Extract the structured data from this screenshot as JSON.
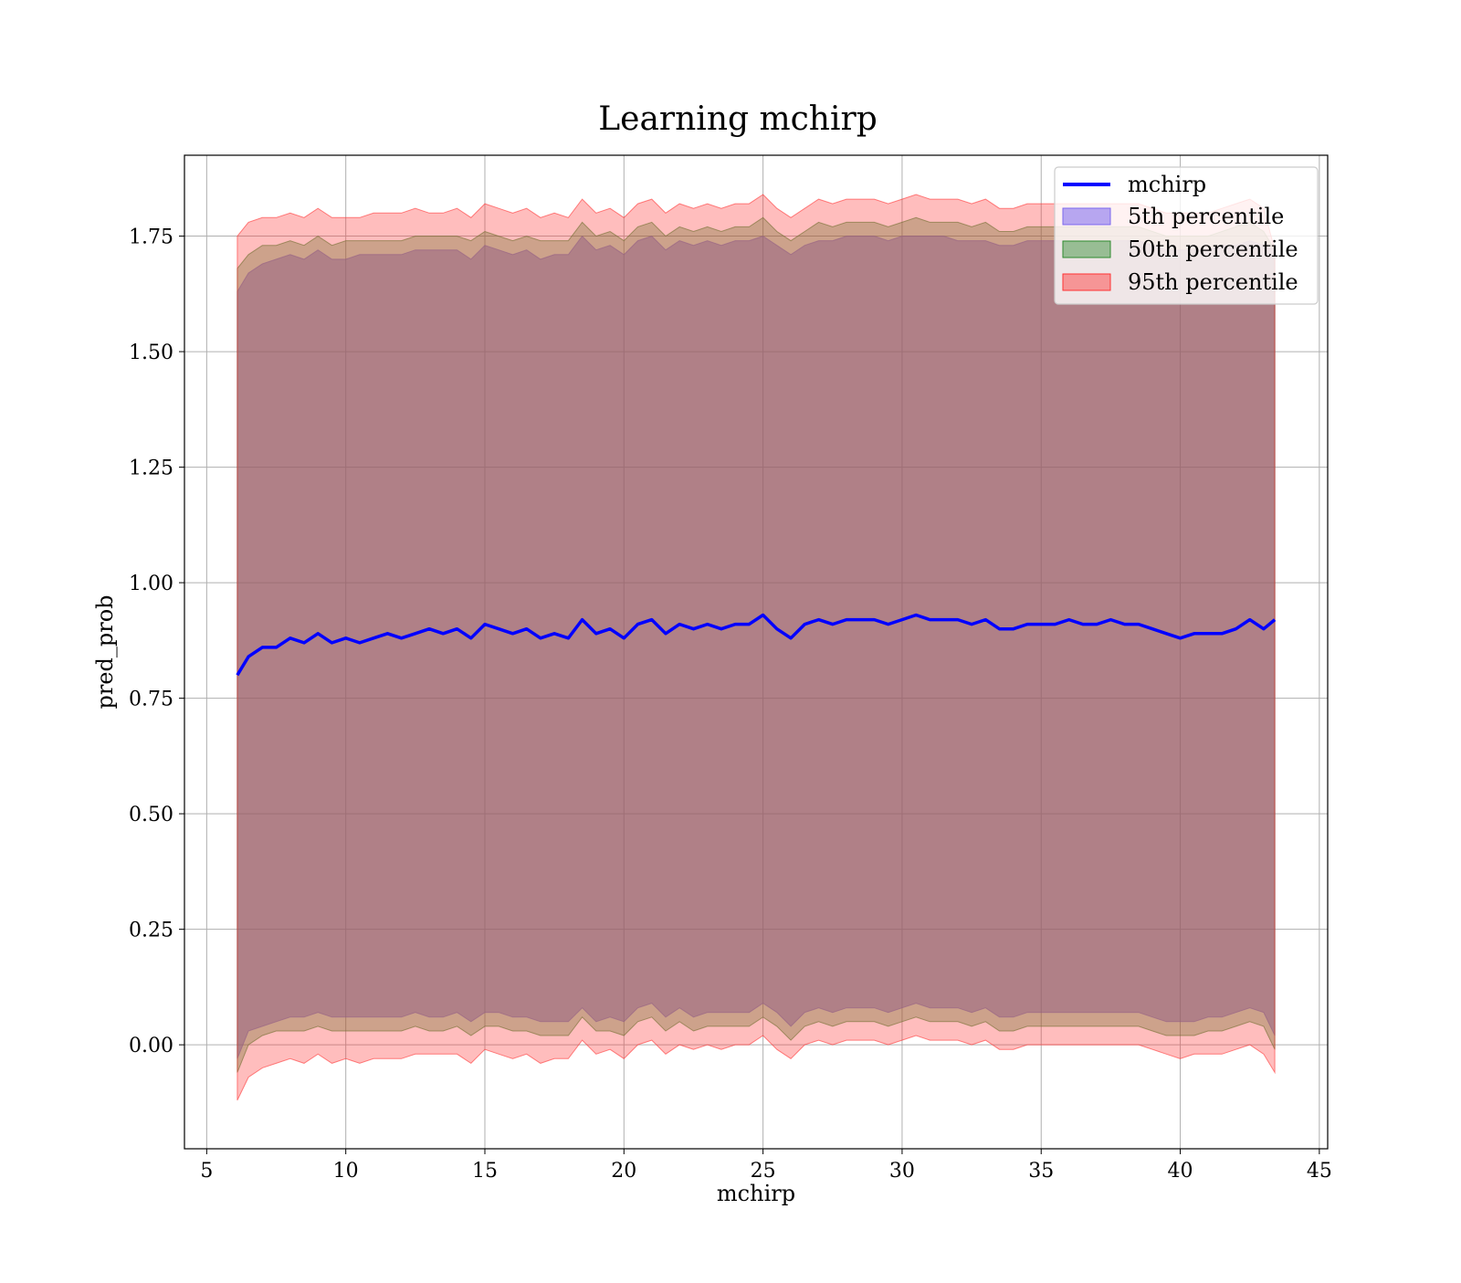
{
  "chart_data": {
    "type": "area",
    "title": "Learning mchirp",
    "xlabel": "mchirp",
    "ylabel": "pred_prob",
    "xlim": [
      4.2,
      45.3
    ],
    "ylim": [
      -0.225,
      1.925
    ],
    "xticks": [
      "5",
      "10",
      "15",
      "20",
      "25",
      "30",
      "35",
      "40",
      "45"
    ],
    "yticks": [
      "0.00",
      "0.25",
      "0.50",
      "0.75",
      "1.00",
      "1.25",
      "1.50",
      "1.75"
    ],
    "grid": true,
    "legend_position": "top-right",
    "legend": [
      "mchirp",
      "5th percentile",
      "50th percentile",
      "95th percentile"
    ],
    "x": [
      6.1,
      6.5,
      7,
      7.5,
      8,
      8.5,
      9,
      9.5,
      10,
      10.5,
      11,
      11.5,
      12,
      12.5,
      13,
      13.5,
      14,
      14.5,
      15,
      15.5,
      16,
      16.5,
      17,
      17.5,
      18,
      18.5,
      19,
      19.5,
      20,
      20.5,
      21,
      21.5,
      22,
      22.5,
      23,
      23.5,
      24,
      24.5,
      25,
      25.5,
      26,
      26.5,
      27,
      27.5,
      28,
      28.5,
      29,
      29.5,
      30,
      30.5,
      31,
      31.5,
      32,
      32.5,
      33,
      33.5,
      34,
      34.5,
      35,
      35.5,
      36,
      36.5,
      37,
      37.5,
      38,
      38.5,
      39,
      39.5,
      40,
      40.5,
      41,
      41.5,
      42,
      42.5,
      43,
      43.4
    ],
    "series": [
      {
        "name": "mchirp",
        "color": "#0000ff",
        "values": [
          0.8,
          0.84,
          0.86,
          0.86,
          0.88,
          0.87,
          0.89,
          0.87,
          0.88,
          0.87,
          0.88,
          0.89,
          0.88,
          0.89,
          0.9,
          0.89,
          0.9,
          0.88,
          0.91,
          0.9,
          0.89,
          0.9,
          0.88,
          0.89,
          0.88,
          0.92,
          0.89,
          0.9,
          0.88,
          0.91,
          0.92,
          0.89,
          0.91,
          0.9,
          0.91,
          0.9,
          0.91,
          0.91,
          0.93,
          0.9,
          0.88,
          0.91,
          0.92,
          0.91,
          0.92,
          0.92,
          0.92,
          0.91,
          0.92,
          0.93,
          0.92,
          0.92,
          0.92,
          0.91,
          0.92,
          0.9,
          0.9,
          0.91,
          0.91,
          0.91,
          0.92,
          0.91,
          0.91,
          0.92,
          0.91,
          0.91,
          0.9,
          0.89,
          0.88,
          0.89,
          0.89,
          0.89,
          0.9,
          0.92,
          0.9,
          0.92
        ]
      },
      {
        "name": "5th percentile",
        "color": "#7b68ee",
        "lower": [
          -0.03,
          0.03,
          0.04,
          0.05,
          0.06,
          0.06,
          0.07,
          0.06,
          0.06,
          0.06,
          0.06,
          0.06,
          0.06,
          0.07,
          0.06,
          0.06,
          0.07,
          0.05,
          0.07,
          0.07,
          0.06,
          0.06,
          0.05,
          0.05,
          0.05,
          0.08,
          0.05,
          0.06,
          0.05,
          0.08,
          0.09,
          0.06,
          0.08,
          0.06,
          0.07,
          0.07,
          0.07,
          0.07,
          0.09,
          0.07,
          0.04,
          0.07,
          0.08,
          0.07,
          0.08,
          0.08,
          0.08,
          0.07,
          0.08,
          0.09,
          0.08,
          0.08,
          0.08,
          0.07,
          0.08,
          0.06,
          0.06,
          0.07,
          0.07,
          0.07,
          0.07,
          0.07,
          0.07,
          0.07,
          0.07,
          0.07,
          0.06,
          0.05,
          0.05,
          0.05,
          0.06,
          0.06,
          0.07,
          0.08,
          0.07,
          0.02
        ],
        "upper": [
          1.63,
          1.67,
          1.69,
          1.7,
          1.71,
          1.7,
          1.72,
          1.7,
          1.7,
          1.71,
          1.71,
          1.71,
          1.71,
          1.72,
          1.72,
          1.72,
          1.72,
          1.7,
          1.73,
          1.72,
          1.71,
          1.72,
          1.7,
          1.71,
          1.71,
          1.75,
          1.72,
          1.73,
          1.71,
          1.74,
          1.75,
          1.72,
          1.74,
          1.73,
          1.74,
          1.73,
          1.74,
          1.74,
          1.75,
          1.73,
          1.71,
          1.73,
          1.74,
          1.74,
          1.75,
          1.75,
          1.75,
          1.74,
          1.75,
          1.75,
          1.75,
          1.75,
          1.74,
          1.74,
          1.74,
          1.73,
          1.73,
          1.74,
          1.74,
          1.74,
          1.74,
          1.74,
          1.74,
          1.74,
          1.74,
          1.74,
          1.73,
          1.72,
          1.72,
          1.72,
          1.72,
          1.73,
          1.73,
          1.74,
          1.73,
          1.72
        ]
      },
      {
        "name": "50th percentile",
        "color": "#2e8b2e",
        "lower": [
          -0.06,
          0.0,
          0.02,
          0.03,
          0.03,
          0.03,
          0.04,
          0.03,
          0.03,
          0.03,
          0.03,
          0.03,
          0.03,
          0.04,
          0.03,
          0.03,
          0.04,
          0.02,
          0.04,
          0.04,
          0.03,
          0.03,
          0.02,
          0.02,
          0.02,
          0.06,
          0.03,
          0.03,
          0.02,
          0.05,
          0.06,
          0.03,
          0.05,
          0.03,
          0.04,
          0.04,
          0.04,
          0.04,
          0.06,
          0.04,
          0.01,
          0.04,
          0.05,
          0.04,
          0.05,
          0.05,
          0.05,
          0.04,
          0.05,
          0.06,
          0.05,
          0.05,
          0.05,
          0.04,
          0.05,
          0.03,
          0.03,
          0.04,
          0.04,
          0.04,
          0.04,
          0.04,
          0.04,
          0.04,
          0.04,
          0.04,
          0.03,
          0.02,
          0.02,
          0.02,
          0.03,
          0.03,
          0.04,
          0.05,
          0.04,
          -0.01
        ],
        "upper": [
          1.68,
          1.71,
          1.73,
          1.73,
          1.74,
          1.73,
          1.75,
          1.73,
          1.74,
          1.74,
          1.74,
          1.74,
          1.74,
          1.75,
          1.75,
          1.75,
          1.75,
          1.74,
          1.76,
          1.75,
          1.74,
          1.75,
          1.74,
          1.74,
          1.74,
          1.78,
          1.75,
          1.76,
          1.74,
          1.77,
          1.78,
          1.75,
          1.77,
          1.76,
          1.77,
          1.76,
          1.77,
          1.77,
          1.79,
          1.76,
          1.74,
          1.76,
          1.78,
          1.77,
          1.78,
          1.78,
          1.78,
          1.77,
          1.78,
          1.79,
          1.78,
          1.78,
          1.78,
          1.77,
          1.78,
          1.76,
          1.76,
          1.77,
          1.77,
          1.77,
          1.77,
          1.77,
          1.77,
          1.77,
          1.77,
          1.77,
          1.76,
          1.75,
          1.75,
          1.75,
          1.75,
          1.76,
          1.77,
          1.78,
          1.76,
          1.72
        ]
      },
      {
        "name": "95th percentile",
        "color": "#ff0000",
        "lower": [
          -0.12,
          -0.07,
          -0.05,
          -0.04,
          -0.03,
          -0.04,
          -0.02,
          -0.04,
          -0.03,
          -0.04,
          -0.03,
          -0.03,
          -0.03,
          -0.02,
          -0.02,
          -0.02,
          -0.02,
          -0.04,
          -0.01,
          -0.02,
          -0.03,
          -0.02,
          -0.04,
          -0.03,
          -0.03,
          0.01,
          -0.02,
          -0.01,
          -0.03,
          0.0,
          0.01,
          -0.02,
          0.0,
          -0.01,
          0.0,
          -0.01,
          0.0,
          0.0,
          0.02,
          -0.01,
          -0.03,
          0.0,
          0.01,
          0.0,
          0.01,
          0.01,
          0.01,
          0.0,
          0.01,
          0.02,
          0.01,
          0.01,
          0.01,
          0.0,
          0.01,
          -0.01,
          -0.01,
          0.0,
          0.0,
          0.0,
          0.0,
          0.0,
          0.0,
          0.0,
          0.0,
          0.0,
          -0.01,
          -0.02,
          -0.03,
          -0.02,
          -0.02,
          -0.02,
          -0.01,
          0.0,
          -0.02,
          -0.06
        ],
        "upper": [
          1.75,
          1.78,
          1.79,
          1.79,
          1.8,
          1.79,
          1.81,
          1.79,
          1.79,
          1.79,
          1.8,
          1.8,
          1.8,
          1.81,
          1.8,
          1.8,
          1.81,
          1.79,
          1.82,
          1.81,
          1.8,
          1.81,
          1.79,
          1.8,
          1.79,
          1.83,
          1.8,
          1.81,
          1.79,
          1.82,
          1.83,
          1.8,
          1.82,
          1.81,
          1.82,
          1.81,
          1.82,
          1.82,
          1.84,
          1.81,
          1.79,
          1.81,
          1.83,
          1.82,
          1.83,
          1.83,
          1.83,
          1.82,
          1.83,
          1.84,
          1.83,
          1.83,
          1.83,
          1.82,
          1.83,
          1.81,
          1.81,
          1.82,
          1.82,
          1.82,
          1.82,
          1.82,
          1.82,
          1.82,
          1.82,
          1.82,
          1.81,
          1.8,
          1.8,
          1.8,
          1.8,
          1.81,
          1.82,
          1.83,
          1.81,
          1.72
        ]
      }
    ]
  }
}
